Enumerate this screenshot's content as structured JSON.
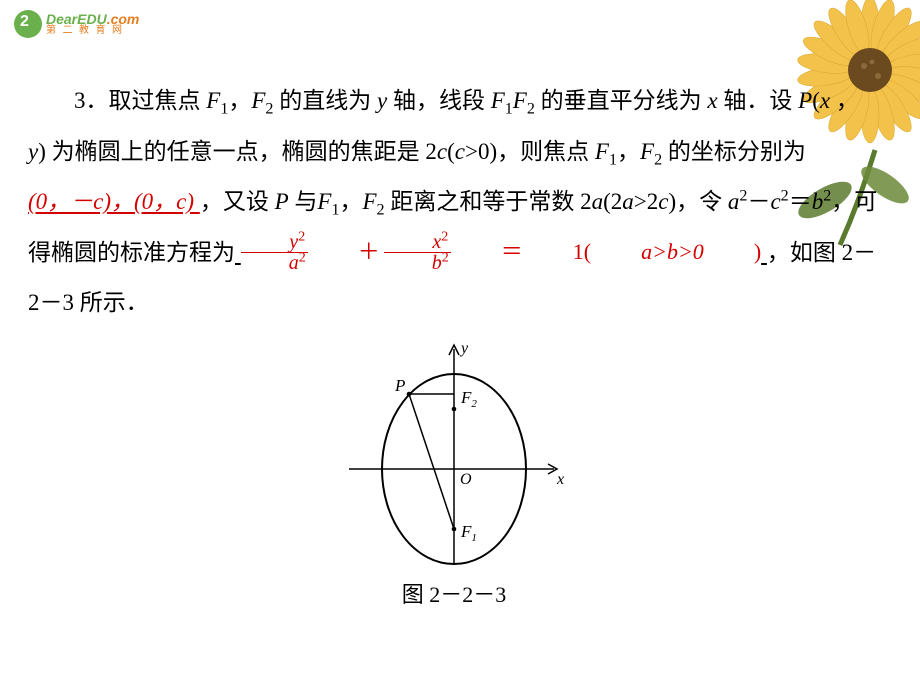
{
  "logo": {
    "brand": "DearEDU",
    "tld": ".com",
    "subtitle": "第 二 教 育 网"
  },
  "paragraph": {
    "lead": "3．取过焦点 ",
    "F1": "F",
    "F1sub": "1",
    "comma1": "，",
    "F2": "F",
    "F2sub": "2",
    "part2": " 的直线为 ",
    "y_axis": "y",
    "part3": " 轴，线段 ",
    "F1F2": "F",
    "F1F2_1": "1",
    "F1F2_2": "2",
    "part4": " 的垂直平分线为 ",
    "x_axis": "x",
    "part5": " 轴．设 ",
    "P": "P",
    "paren_open": "(",
    "px": "x",
    "pc": " ， ",
    "py": "y",
    "paren_close": ")",
    "part6": " 为椭圆上的任意一点，椭圆的焦距是 2",
    "c": "c",
    "paren_c": "(",
    "cgt": "c",
    "gt0": ">0)，则焦点 ",
    "part7": " 的坐标分别为",
    "coords": "(0，－c)，(0，c) ",
    "part8": "，又设 ",
    "Pwith": "P",
    "with": " 与",
    "part9": " 距离之和等于常数 2",
    "a": "a",
    "paren_2a": "(2",
    "agt2c": ">2",
    "pc2": ")，令 ",
    "asq": "a",
    "sq2": "2",
    "minus": "－",
    "csq": "c",
    "eq": "＝",
    "bsq": "b",
    "part10": "，可得椭圆的标准方程为",
    "eq1": "1(",
    "abcond": "a>b>0",
    "eq_close": ")",
    "part11": "，如图 2－2－3 所示．"
  },
  "fraction": {
    "y": "y",
    "x": "x",
    "a": "a",
    "b": "b",
    "two": "2",
    "plus": "＋",
    "eqsign": "＝"
  },
  "figure": {
    "P": "P",
    "F1": "F",
    "F1s": "1",
    "F2": "F",
    "F2s": "2",
    "O": "O",
    "x": "x",
    "y": "y",
    "caption": "图 2－2－3"
  },
  "flower": {
    "petal_color": "#f2c24b",
    "center_color": "#6b4a1f",
    "leaf_color": "#5a7a2e"
  }
}
